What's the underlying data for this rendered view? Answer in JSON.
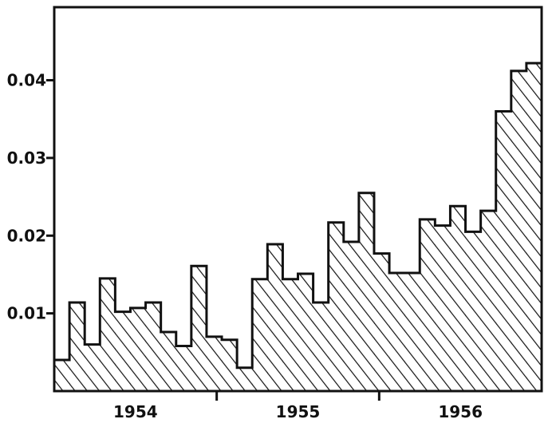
{
  "chart_data": {
    "type": "bar",
    "title": "",
    "xlabel": "",
    "ylabel": "",
    "ylim": [
      0,
      0.0494
    ],
    "yticks": [
      {
        "value": 0.01,
        "label": "0.01"
      },
      {
        "value": 0.02,
        "label": "0.02"
      },
      {
        "value": 0.03,
        "label": "0.03"
      },
      {
        "value": 0.04,
        "label": "0.04"
      }
    ],
    "year_labels": [
      "1954",
      "1955",
      "1956"
    ],
    "values": [
      0.004,
      0.0114,
      0.006,
      0.0145,
      0.0102,
      0.0107,
      0.0114,
      0.0076,
      0.0058,
      0.0161,
      0.007,
      0.0066,
      0.003,
      0.0144,
      0.0189,
      0.0144,
      0.0151,
      0.0114,
      0.0217,
      0.0192,
      0.0255,
      0.0177,
      0.0152,
      0.0152,
      0.0221,
      0.0213,
      0.0238,
      0.0205,
      0.0232,
      0.036,
      0.0412,
      0.0422
    ],
    "grid": false,
    "fill": "diagonal-hatch",
    "colors": {
      "ink": "#111111",
      "background": "#ffffff"
    }
  }
}
